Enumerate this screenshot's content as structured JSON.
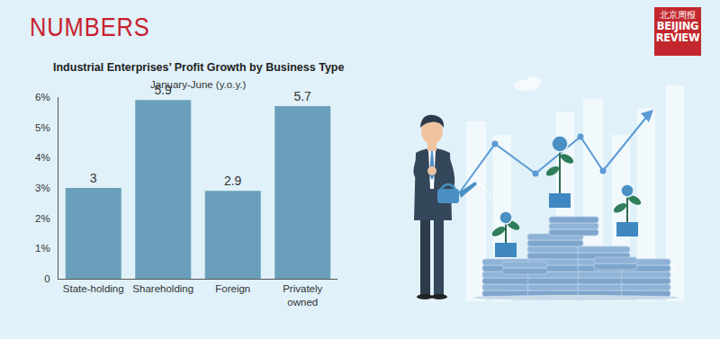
{
  "page": {
    "heading": "NUMBERS",
    "logo": {
      "chinese": "北京周报",
      "lines": [
        "BEIJING",
        "REVIEW"
      ]
    }
  },
  "chart_data": {
    "type": "bar",
    "title": "Industrial Enterprises’ Profit Growth by Business Type",
    "subtitle": "January-June (y.o.y.)",
    "categories": [
      "State-holding",
      "Shareholding",
      "Foreign",
      "Privately owned"
    ],
    "values": [
      3,
      5.9,
      2.9,
      5.7
    ],
    "color": "#6a9fbb",
    "ylim": [
      0,
      6
    ],
    "yticks": [
      0,
      {
        "value": 1,
        "label": "1%"
      },
      {
        "value": 2,
        "label": "2%"
      },
      {
        "value": 3,
        "label": "3%"
      },
      {
        "value": 4,
        "label": "4%"
      },
      {
        "value": 5,
        "label": "5%"
      },
      {
        "value": 6,
        "label": "6%"
      }
    ],
    "grid": false,
    "data_labels": true
  }
}
